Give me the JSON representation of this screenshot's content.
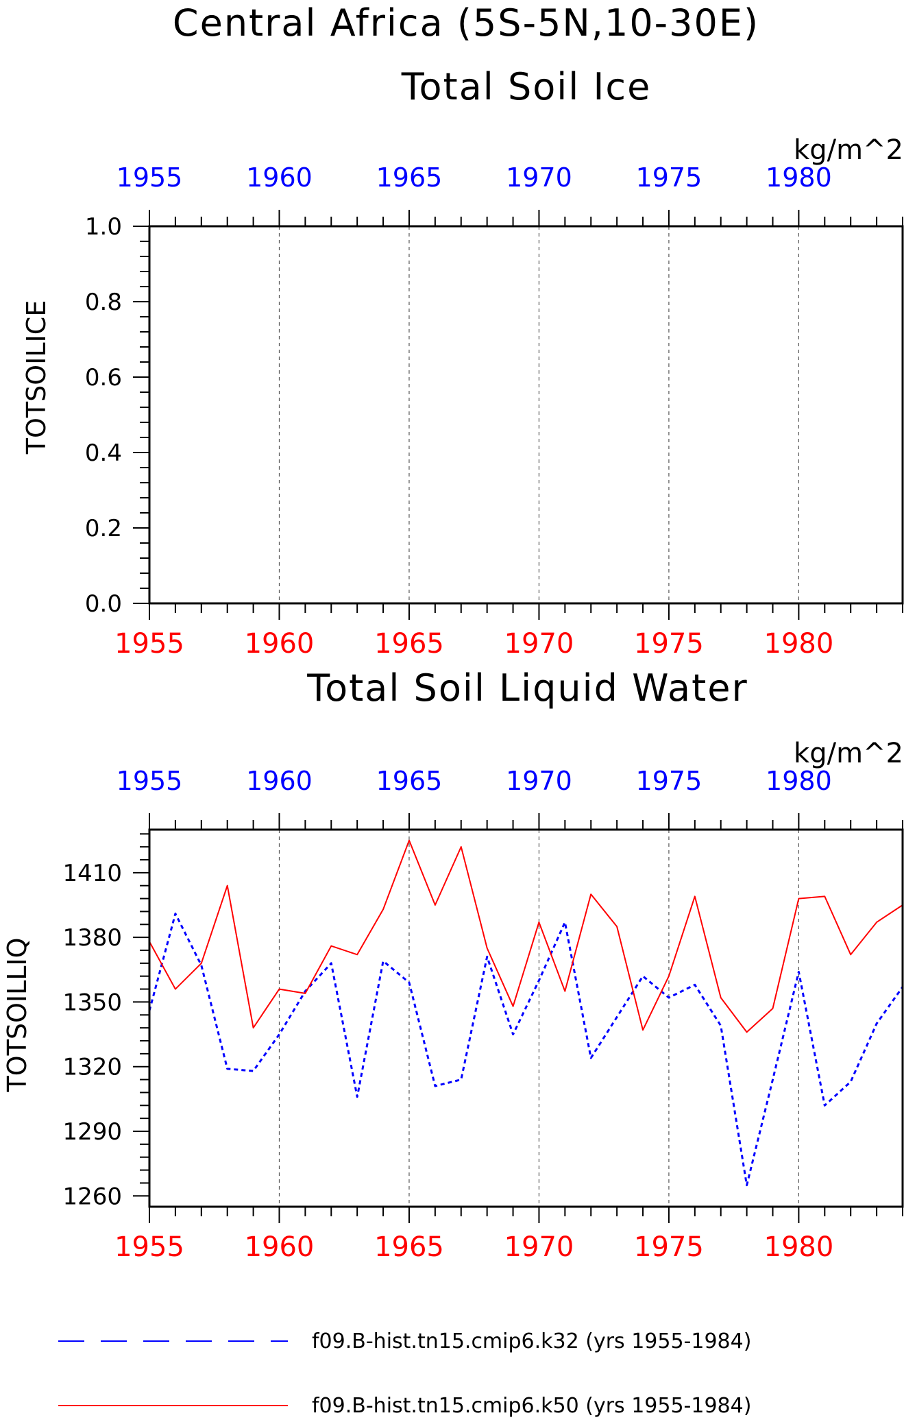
{
  "chart_data": [
    {
      "type": "line",
      "title_lines": [
        "Central Africa (5S-5N,10-30E)",
        "Total Soil Ice"
      ],
      "units": "kg/m^2",
      "ylabel": "TOTSOILICE",
      "xlim": [
        1955,
        1984
      ],
      "ylim": [
        0.0,
        1.0
      ],
      "x_ticks": [
        "1955",
        "1960",
        "1965",
        "1970",
        "1975",
        "1980"
      ],
      "y_ticks": [
        "0.0",
        "0.2",
        "0.4",
        "0.6",
        "0.8",
        "1.0"
      ],
      "grid": "vertical dashed at labeled years",
      "top_axis_color": "#0000ff",
      "bottom_axis_color": "#ff0000",
      "series": []
    },
    {
      "type": "line",
      "title": "Total Soil Liquid Water",
      "units": "kg/m^2",
      "ylabel": "TOTSOILLIQ",
      "xlim": [
        1955,
        1984
      ],
      "ylim": [
        1255,
        1430
      ],
      "x_ticks": [
        "1955",
        "1960",
        "1965",
        "1970",
        "1975",
        "1980"
      ],
      "y_ticks": [
        "1260",
        "1290",
        "1320",
        "1350",
        "1380",
        "1410"
      ],
      "grid": "vertical dashed at labeled years",
      "top_axis_color": "#0000ff",
      "bottom_axis_color": "#ff0000",
      "x": [
        1955,
        1956,
        1957,
        1958,
        1959,
        1960,
        1961,
        1962,
        1963,
        1964,
        1965,
        1966,
        1967,
        1968,
        1969,
        1970,
        1971,
        1972,
        1973,
        1974,
        1975,
        1976,
        1977,
        1978,
        1979,
        1980,
        1981,
        1982,
        1983,
        1984
      ],
      "series": [
        {
          "name": "f09.B-hist.tn15.cmip6.k32 (yrs 1955-1984)",
          "color": "#0000ff",
          "style": "dashed",
          "values": [
            1346,
            1391,
            1367,
            1319,
            1318,
            1335,
            1355,
            1368,
            1306,
            1369,
            1359,
            1311,
            1314,
            1371,
            1335,
            1360,
            1387,
            1324,
            1343,
            1362,
            1352,
            1358,
            1339,
            1265,
            1314,
            1364,
            1302,
            1313,
            1340,
            1357
          ]
        },
        {
          "name": "f09.B-hist.tn15.cmip6.k50 (yrs 1955-1984)",
          "color": "#ff0000",
          "style": "solid",
          "values": [
            1378,
            1356,
            1368,
            1404,
            1338,
            1356,
            1354,
            1376,
            1372,
            1393,
            1425,
            1395,
            1422,
            1375,
            1348,
            1387,
            1355,
            1400,
            1385,
            1337,
            1362,
            1399,
            1352,
            1336,
            1347,
            1398,
            1399,
            1372,
            1387,
            1395
          ]
        }
      ]
    }
  ]
}
